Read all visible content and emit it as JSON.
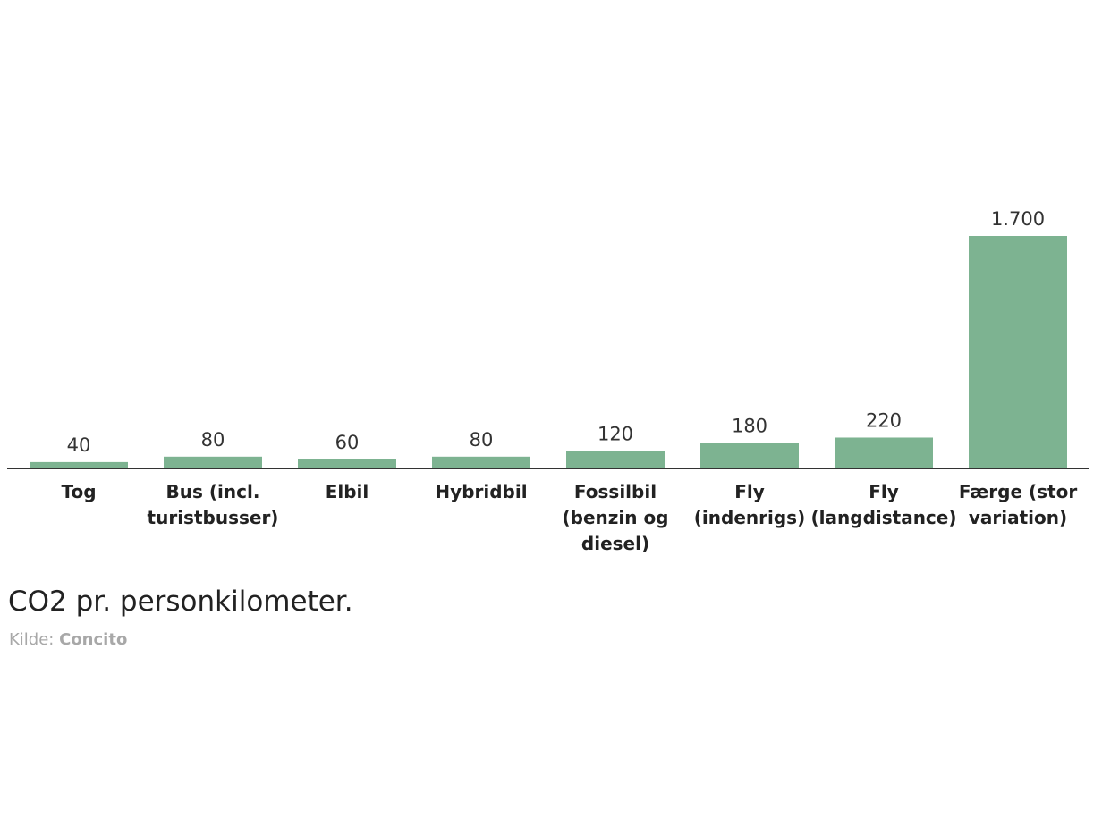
{
  "chart_data": {
    "type": "bar",
    "categories": [
      "Tog",
      "Bus (incl. turistbusser)",
      "Elbil",
      "Hybridbil",
      "Fossilbil (benzin og diesel)",
      "Fly (indenrigs)",
      "Fly (langdistance)",
      "Færge (stor variation)"
    ],
    "values": [
      40,
      80,
      60,
      80,
      120,
      180,
      220,
      1700
    ],
    "value_labels": [
      "40",
      "80",
      "60",
      "80",
      "120",
      "180",
      "220",
      "1.700"
    ],
    "color": "#7db391",
    "ylim": [
      0,
      1700
    ],
    "caption": "CO2 pr. personkilometer.",
    "source_label": "Kilde:",
    "source": "Concito"
  }
}
